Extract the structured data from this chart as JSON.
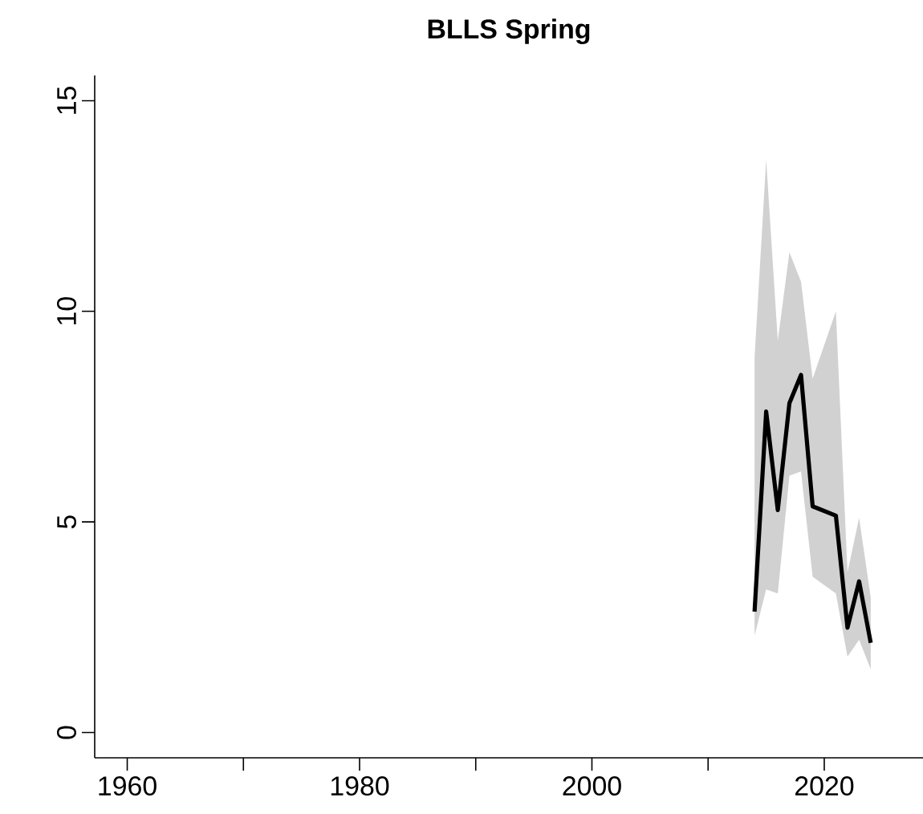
{
  "chart_data": {
    "type": "line",
    "title": "BLLS Spring",
    "x": [
      2014,
      2015,
      2016,
      2017,
      2018,
      2019,
      2021,
      2022,
      2023,
      2024
    ],
    "series": [
      {
        "color": "#000000",
        "values": [
          2.87,
          7.62,
          5.28,
          7.82,
          8.49,
          5.37,
          5.15,
          2.49,
          3.59,
          2.13
        ],
        "lower": [
          2.3,
          3.4,
          3.3,
          6.1,
          6.2,
          3.7,
          3.3,
          1.8,
          2.2,
          1.5
        ],
        "upper": [
          8.9,
          13.6,
          9.3,
          11.4,
          10.7,
          8.4,
          10.0,
          3.8,
          5.1,
          3.2
        ]
      }
    ],
    "xlim": [
      1957.2,
      2028.5
    ],
    "ylim": [
      -0.6,
      15.6
    ],
    "xticks": [
      1960,
      {
        "value": 1970,
        "label": null
      },
      1980,
      {
        "value": 1990,
        "label": null
      },
      2000,
      {
        "value": 2010,
        "label": null
      },
      2020
    ],
    "yticks": [
      0,
      5,
      10,
      15
    ],
    "grid": false,
    "marker": "none",
    "line_style": "solid"
  }
}
